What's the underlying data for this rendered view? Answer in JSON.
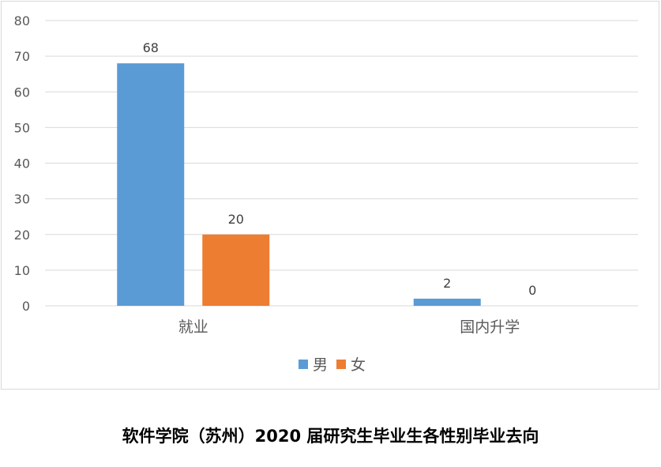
{
  "chart_data": {
    "type": "bar",
    "title": "",
    "xlabel": "",
    "ylabel": "",
    "categories": [
      "就业",
      "国内升学"
    ],
    "series": [
      {
        "name": "男",
        "values": [
          68,
          2
        ],
        "color": "#5B9BD5"
      },
      {
        "name": "女",
        "values": [
          20,
          0
        ],
        "color": "#ED7D31"
      }
    ],
    "ylim": [
      0,
      80
    ],
    "yticks": [
      0,
      10,
      20,
      30,
      40,
      50,
      60,
      70,
      80
    ],
    "grid": true,
    "legend": "bottom"
  },
  "caption": "软件学院（苏州）2020 届研究生毕业生各性别毕业去向"
}
